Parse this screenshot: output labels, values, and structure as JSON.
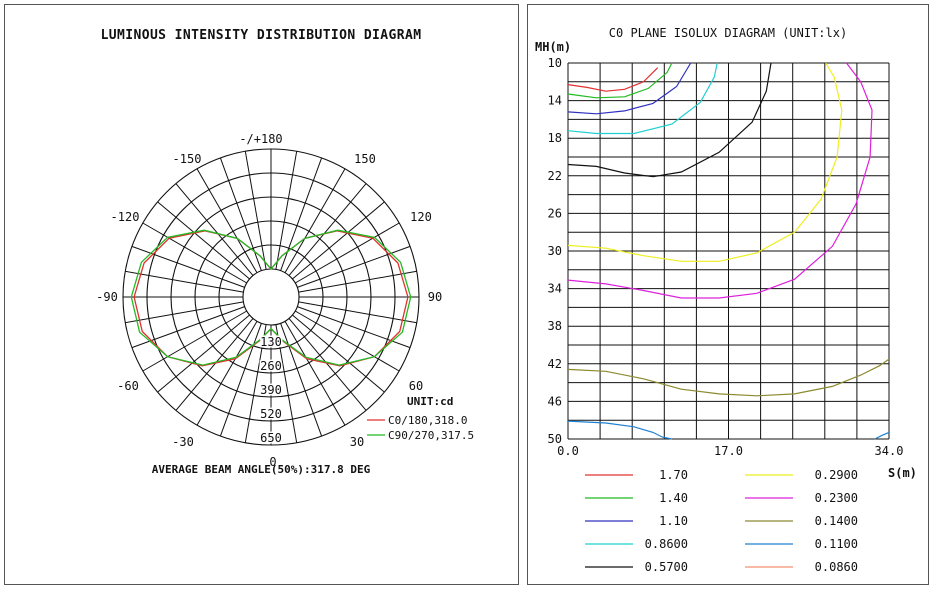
{
  "chart_data": [
    {
      "type": "polar",
      "title": "LUMINOUS INTENSITY DISTRIBUTION DIAGRAM",
      "angle_labels": [
        "-/+180",
        "-150",
        "150",
        "-120",
        "120",
        "-90",
        "90",
        "-60",
        "60",
        "-30",
        "30",
        "0"
      ],
      "radial_labels": [
        "130",
        "260",
        "390",
        "520",
        "650"
      ],
      "radial_max": 650,
      "unit": "UNIT:cd",
      "footer": "AVERAGE BEAM ANGLE(50%):317.8 DEG",
      "series": [
        {
          "name": "C0/180,318.0",
          "color": "#e03030",
          "angles": [
            0,
            15,
            30,
            45,
            60,
            75,
            90,
            105,
            120,
            135,
            150,
            165,
            180
          ],
          "values": [
            20,
            95,
            235,
            375,
            495,
            570,
            590,
            560,
            485,
            355,
            215,
            80,
            0
          ]
        },
        {
          "name": "C90/270,317.5",
          "color": "#22bb22",
          "angles": [
            0,
            15,
            30,
            45,
            60,
            75,
            90,
            105,
            120,
            135,
            150,
            165,
            180
          ],
          "values": [
            20,
            90,
            225,
            370,
            495,
            585,
            605,
            575,
            495,
            360,
            215,
            80,
            0
          ]
        }
      ]
    },
    {
      "type": "contour",
      "title": "C0 PLANE ISOLUX DIAGRAM (UNIT:lx)",
      "ylabel": "MH(m)",
      "xlabel": "S(m)",
      "yticks": [
        "10",
        "14",
        "18",
        "22",
        "26",
        "30",
        "34",
        "38",
        "42",
        "46",
        "50"
      ],
      "xticks": [
        "0.0",
        "17.0",
        "34.0"
      ],
      "xlim": [
        0,
        34
      ],
      "ylim": [
        10,
        50
      ],
      "legend": [
        {
          "value": "1.70",
          "color": "#e03030"
        },
        {
          "value": "1.40",
          "color": "#22bb22"
        },
        {
          "value": "1.10",
          "color": "#3030c0"
        },
        {
          "value": "0.8600",
          "color": "#20d0d0"
        },
        {
          "value": "0.5700",
          "color": "#111111"
        },
        {
          "value": "0.2900",
          "color": "#eeee20"
        },
        {
          "value": "0.2300",
          "color": "#dd20dd"
        },
        {
          "value": "0.1400",
          "color": "#8a8a30"
        },
        {
          "value": "0.1100",
          "color": "#2080d0"
        },
        {
          "value": "0.0860",
          "color": "#f09070"
        }
      ],
      "contours": [
        {
          "value": "1.70",
          "color": "#e03030",
          "points": [
            [
              0,
              12.3
            ],
            [
              2,
              12.6
            ],
            [
              4,
              13.0
            ],
            [
              6,
              12.8
            ],
            [
              8,
              12.0
            ],
            [
              9.5,
              10.5
            ]
          ]
        },
        {
          "value": "1.40",
          "color": "#22bb22",
          "points": [
            [
              0,
              13.3
            ],
            [
              3,
              13.7
            ],
            [
              6,
              13.6
            ],
            [
              8.5,
              12.7
            ],
            [
              10.5,
              11.0
            ],
            [
              11,
              10.0
            ]
          ]
        },
        {
          "value": "1.10",
          "color": "#3030c0",
          "points": [
            [
              0,
              15.2
            ],
            [
              3,
              15.4
            ],
            [
              6,
              15.1
            ],
            [
              9,
              14.3
            ],
            [
              11.5,
              12.5
            ],
            [
              13,
              10.0
            ]
          ]
        },
        {
          "value": "0.8600",
          "color": "#20d0d0",
          "points": [
            [
              0,
              17.2
            ],
            [
              3,
              17.5
            ],
            [
              7,
              17.5
            ],
            [
              11,
              16.5
            ],
            [
              14,
              14.2
            ],
            [
              15.5,
              11.5
            ],
            [
              15.8,
              10.0
            ]
          ]
        },
        {
          "value": "0.5700",
          "color": "#111111",
          "points": [
            [
              0,
              20.8
            ],
            [
              3,
              21.0
            ],
            [
              6,
              21.7
            ],
            [
              9,
              22.1
            ],
            [
              12,
              21.6
            ],
            [
              16,
              19.5
            ],
            [
              19.5,
              16.3
            ],
            [
              21,
              13.0
            ],
            [
              21.5,
              10.0
            ]
          ]
        },
        {
          "value": "0.2900",
          "color": "#eeee20",
          "points": [
            [
              0,
              29.4
            ],
            [
              4,
              29.7
            ],
            [
              8,
              30.5
            ],
            [
              12,
              31.1
            ],
            [
              16,
              31.1
            ],
            [
              20,
              30.2
            ],
            [
              24,
              28.0
            ],
            [
              26.8,
              24.5
            ],
            [
              28.5,
              20.0
            ],
            [
              29,
              15.0
            ],
            [
              28.2,
              11.5
            ],
            [
              27.3,
              10.0
            ]
          ]
        },
        {
          "value": "0.2300",
          "color": "#dd20dd",
          "points": [
            [
              0,
              33.1
            ],
            [
              4,
              33.5
            ],
            [
              8,
              34.2
            ],
            [
              12,
              35.0
            ],
            [
              16,
              35.0
            ],
            [
              20,
              34.5
            ],
            [
              24,
              33.0
            ],
            [
              28,
              29.5
            ],
            [
              30.5,
              25.0
            ],
            [
              32,
              20.0
            ],
            [
              32.2,
              15.0
            ],
            [
              31,
              12.0
            ],
            [
              29.5,
              10.0
            ]
          ]
        },
        {
          "value": "0.1400",
          "color": "#8a8a30",
          "points": [
            [
              0,
              42.6
            ],
            [
              4,
              42.8
            ],
            [
              8,
              43.6
            ],
            [
              12,
              44.7
            ],
            [
              16,
              45.2
            ],
            [
              20,
              45.4
            ],
            [
              24,
              45.2
            ],
            [
              28,
              44.4
            ],
            [
              31,
              43.2
            ],
            [
              33,
              42.2
            ],
            [
              34,
              41.5
            ]
          ]
        },
        {
          "value": "0.1100",
          "color": "#2080d0",
          "points": [
            [
              0,
              48.1
            ],
            [
              4,
              48.3
            ],
            [
              7,
              48.7
            ],
            [
              9,
              49.3
            ],
            [
              10,
              49.8
            ],
            [
              11,
              50.0
            ]
          ]
        },
        {
          "value": "0.1100",
          "color": "#2080d0",
          "points": [
            [
              32.5,
              50.0
            ],
            [
              33.3,
              49.6
            ],
            [
              34,
              49.3
            ]
          ]
        }
      ]
    }
  ]
}
